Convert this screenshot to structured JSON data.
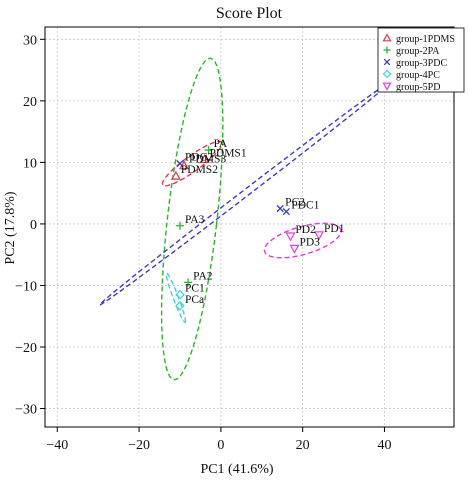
{
  "chart_data": {
    "type": "scatter",
    "title": "Score Plot",
    "xlabel": "PC1 (41.6%)",
    "ylabel": "PC2 (17.8%)",
    "xlim": [
      -43,
      57
    ],
    "ylim": [
      -33,
      32
    ],
    "xticks": [
      -40,
      -20,
      0,
      20,
      40
    ],
    "yticks": [
      30,
      20,
      10,
      0,
      -10,
      -20,
      -30
    ],
    "grid": true,
    "legend_position": "top-right",
    "series": [
      {
        "name": "group-1PDMS",
        "marker": "triangle-up",
        "color": "#e8344a",
        "points": [
          {
            "label": "PDMS1",
            "x": -4,
            "y": 10.5
          },
          {
            "label": "PDMS3",
            "x": -9,
            "y": 9.5
          },
          {
            "label": "PDMS2",
            "x": -11,
            "y": 7.8
          }
        ],
        "ellipse": {
          "cx": -7,
          "cy": 9.8,
          "rx": 8,
          "ry": 1.4,
          "angle_deg": 25
        }
      },
      {
        "name": "group-2PA",
        "marker": "plus",
        "color": "#2bb52b",
        "points": [
          {
            "label": "PA",
            "x": -3,
            "y": 12
          },
          {
            "label": "PA3",
            "x": -10,
            "y": -0.3
          },
          {
            "label": "PA2",
            "x": -8,
            "y": -9.5
          }
        ],
        "ellipse": {
          "cx": -7,
          "cy": 0.8,
          "rx": 6,
          "ry": 26.5,
          "angle_deg": -10
        }
      },
      {
        "name": "group-3PDC",
        "marker": "x",
        "color": "#3a3ad8",
        "points": [
          {
            "label": "PDC2",
            "x": -10,
            "y": 9.8
          },
          {
            "label": "PC2",
            "x": 14.5,
            "y": 2.5
          },
          {
            "label": "PDC1",
            "x": 16,
            "y": 2.0
          }
        ],
        "ellipse": {
          "cx": 6,
          "cy": 5,
          "rx": 40,
          "ry": 0.6,
          "angle_deg": 27
        }
      },
      {
        "name": "group-4PC",
        "marker": "diamond",
        "color": "#3ad6e0",
        "points": [
          {
            "label": "PC1",
            "x": -10,
            "y": -11.5
          },
          {
            "label": "PCa",
            "x": -10,
            "y": -13.3
          }
        ],
        "ellipse": {
          "cx": -11,
          "cy": -12,
          "rx": 4.6,
          "ry": 0.6,
          "angle_deg": -60
        }
      },
      {
        "name": "group-5PD",
        "marker": "triangle-down",
        "color": "#e83ae0",
        "points": [
          {
            "label": "PD1",
            "x": 24,
            "y": -1.8
          },
          {
            "label": "PD2",
            "x": 17,
            "y": -2.0
          },
          {
            "label": "PD3",
            "x": 18,
            "y": -4.0
          }
        ],
        "ellipse": {
          "cx": 20,
          "cy": -2.7,
          "rx": 9.5,
          "ry": 2.3,
          "angle_deg": 10
        }
      }
    ]
  }
}
